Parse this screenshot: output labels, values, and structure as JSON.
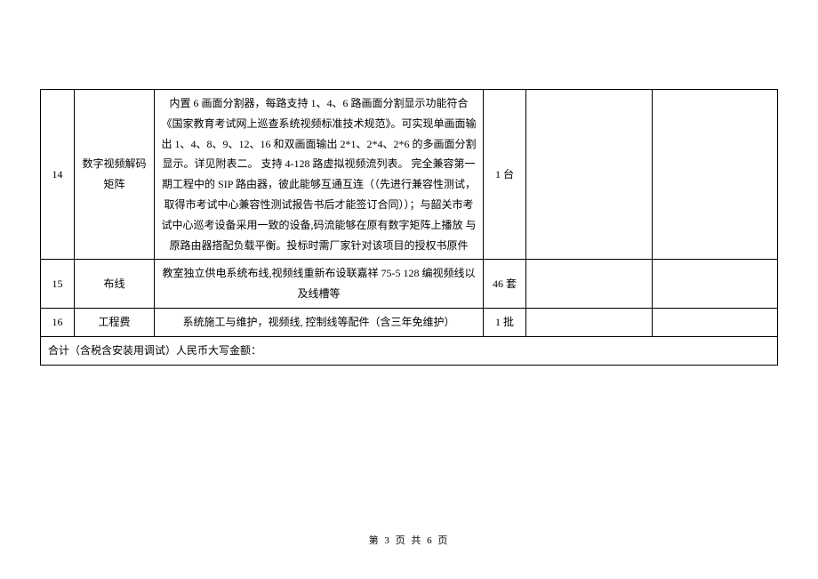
{
  "rows": [
    {
      "index": "14",
      "name": "数字视频解码矩阵",
      "desc": "内置 6 画面分割器，每路支持 1、4、6 路画面分割显示功能符合《国家教育考试网上巡查系统视频标准技术规范》。可实现单画面输出 1、4、8、9、12、16 和双画面输出 2*1、2*4、2*6 的多画面分割显示。详见附表二。\n支持 4-128 路虚拟视频流列表。\n完全兼容第一期工程中的 SIP 路由器，彼此能够互通互连（（先进行兼容性测试，取得市考试中心兼容性测试报告书后才能签订合同））；与韶关市考试中心巡考设备采用一致的设备,码流能够在原有数字矩阵上播放 与原路由器搭配负载平衡。投标时需厂家针对该项目的授权书原件",
      "qty": "1 台"
    },
    {
      "index": "15",
      "name": "布线",
      "desc": "教室独立供电系统布线,视频线重新布设联嘉祥 75-5 128 编视频线以及线槽等",
      "qty": "46 套"
    },
    {
      "index": "16",
      "name": "工程费",
      "desc": "系统施工与维护，视频线, 控制线等配件（含三年免维护）",
      "qty": "1 批"
    }
  ],
  "summary_label": "合计（含税含安装用调试）人民币大写金额：",
  "page_footer": "第 3 页 共 6 页",
  "styles": {
    "background_color": "#ffffff",
    "border_color": "#000000",
    "text_color": "#000000",
    "font_size_cell": 12,
    "font_size_footer": 11,
    "line_height": 1.9
  },
  "columns": {
    "col_index_width": 38,
    "col_name_width": 90,
    "col_desc_width": 370,
    "col_qty_width": 48
  }
}
